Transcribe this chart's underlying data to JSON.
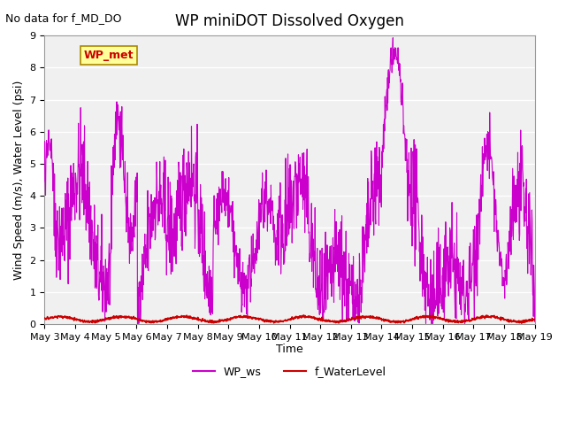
{
  "title": "WP miniDOT Dissolved Oxygen",
  "title_note": "No data for f_MD_DO",
  "ylabel": "Wind Speed (m/s), Water Level (psi)",
  "xlabel": "Time",
  "ylim": [
    0,
    9.0
  ],
  "yticks": [
    0.0,
    1.0,
    2.0,
    3.0,
    4.0,
    5.0,
    6.0,
    7.0,
    8.0,
    9.0
  ],
  "legend_labels": [
    "WP_ws",
    "f_WaterLevel"
  ],
  "legend_colors": [
    "#CC00CC",
    "#CC0000"
  ],
  "wp_met_label": "WP_met",
  "wp_met_box_color": "#FFFF99",
  "wp_met_text_color": "#CC0000",
  "line_color_ws": "#CC00CC",
  "line_color_wl": "#CC0000",
  "bg_color": "#E8E8E8",
  "plot_bg": "#F0F0F0",
  "grid_color": "white",
  "num_days": 16,
  "start_day": 3,
  "end_day": 18
}
